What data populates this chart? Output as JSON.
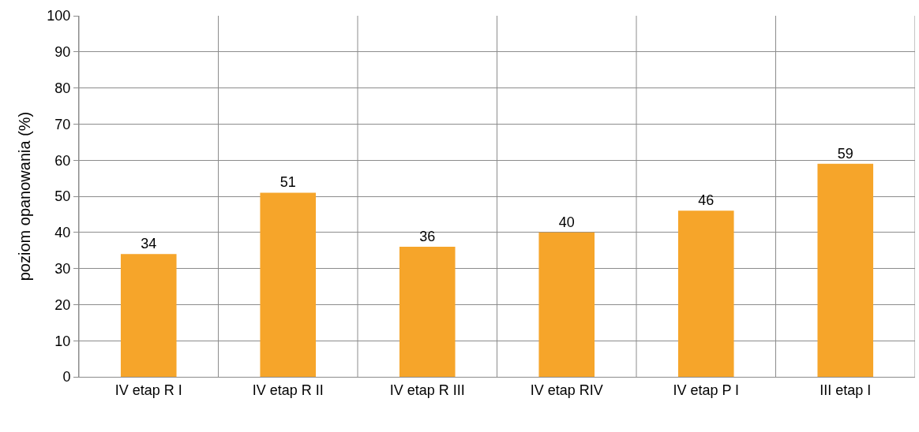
{
  "chart_data": {
    "type": "bar",
    "ylabel": "poziom opanowania (%)",
    "categories": [
      "IV etap R I",
      "IV etap R II",
      "IV etap R III",
      "IV etap RIV",
      "IV etap P I",
      "III etap I"
    ],
    "values": [
      34,
      51,
      36,
      40,
      46,
      59
    ],
    "color": "#f6a52a",
    "ylim": [
      0,
      100
    ],
    "yticks": [
      0,
      10,
      20,
      30,
      40,
      50,
      60,
      70,
      80,
      90,
      100
    ],
    "grid": true,
    "data_labels": true
  }
}
